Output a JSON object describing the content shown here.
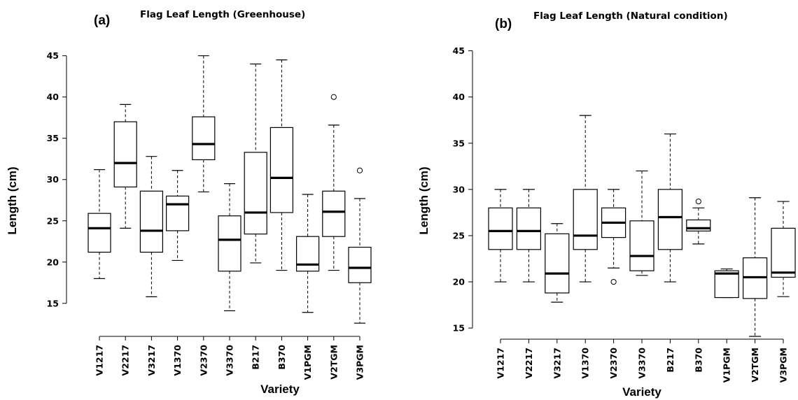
{
  "chart_data": [
    {
      "type": "box",
      "panel": "(a)",
      "title": "Flag Leaf Length (Greenhouse)",
      "xlabel": "Variety",
      "ylabel": "Length (cm)",
      "ylim": [
        11,
        46.5
      ],
      "yticks": [
        15,
        20,
        25,
        30,
        35,
        40,
        45
      ],
      "categories": [
        "V1217",
        "V2217",
        "V3217",
        "V1370",
        "V2370",
        "V3370",
        "B217",
        "B370",
        "V1PGM",
        "V2TGM",
        "V3PGM"
      ],
      "boxes": [
        {
          "min": 18.0,
          "q1": 21.2,
          "median": 24.1,
          "q3": 25.9,
          "max": 31.2,
          "outliers": []
        },
        {
          "min": 24.1,
          "q1": 29.1,
          "median": 32.0,
          "q3": 37.0,
          "max": 39.1,
          "outliers": []
        },
        {
          "min": 15.8,
          "q1": 21.2,
          "median": 23.8,
          "q3": 28.6,
          "max": 32.8,
          "outliers": []
        },
        {
          "min": 20.2,
          "q1": 23.8,
          "median": 27.0,
          "q3": 28.0,
          "max": 31.1,
          "outliers": []
        },
        {
          "min": 28.5,
          "q1": 32.4,
          "median": 34.3,
          "q3": 37.6,
          "max": 45.0,
          "outliers": []
        },
        {
          "min": 14.1,
          "q1": 18.9,
          "median": 22.7,
          "q3": 25.6,
          "max": 29.5,
          "outliers": []
        },
        {
          "min": 19.9,
          "q1": 23.4,
          "median": 26.0,
          "q3": 33.3,
          "max": 44.0,
          "outliers": []
        },
        {
          "min": 19.0,
          "q1": 26.0,
          "median": 30.2,
          "q3": 36.3,
          "max": 44.5,
          "outliers": []
        },
        {
          "min": 13.9,
          "q1": 18.9,
          "median": 19.7,
          "q3": 23.1,
          "max": 28.2,
          "outliers": []
        },
        {
          "min": 19.0,
          "q1": 23.1,
          "median": 26.1,
          "q3": 28.6,
          "max": 36.6,
          "outliers": [
            40.0
          ]
        },
        {
          "min": 12.6,
          "q1": 17.5,
          "median": 19.3,
          "q3": 21.8,
          "max": 27.7,
          "outliers": [
            31.1
          ]
        }
      ]
    },
    {
      "type": "box",
      "panel": "(b)",
      "title": "Flag Leaf Length (Natural condition)",
      "xlabel": "Variety",
      "ylabel": "Length (cm)",
      "ylim": [
        13.8,
        45.5
      ],
      "yticks": [
        15,
        20,
        25,
        30,
        35,
        40,
        45
      ],
      "categories": [
        "V1217",
        "V2217",
        "V3217",
        "V1370",
        "V2370",
        "V3370",
        "B217",
        "B370",
        "V1PGM",
        "V2TGM",
        "V3PGM"
      ],
      "boxes": [
        {
          "min": 20.0,
          "q1": 23.5,
          "median": 25.5,
          "q3": 28.0,
          "max": 30.0,
          "outliers": []
        },
        {
          "min": 20.0,
          "q1": 23.5,
          "median": 25.5,
          "q3": 28.0,
          "max": 30.0,
          "outliers": []
        },
        {
          "min": 17.8,
          "q1": 18.8,
          "median": 20.9,
          "q3": 25.2,
          "max": 26.3,
          "outliers": []
        },
        {
          "min": 20.0,
          "q1": 23.5,
          "median": 25.0,
          "q3": 30.0,
          "max": 38.0,
          "outliers": []
        },
        {
          "min": 21.5,
          "q1": 24.8,
          "median": 26.4,
          "q3": 28.0,
          "max": 30.0,
          "outliers": [
            20.0
          ]
        },
        {
          "min": 20.7,
          "q1": 21.2,
          "median": 22.8,
          "q3": 26.6,
          "max": 32.0,
          "outliers": []
        },
        {
          "min": 20.0,
          "q1": 23.5,
          "median": 27.0,
          "q3": 30.0,
          "max": 36.0,
          "outliers": []
        },
        {
          "min": 24.1,
          "q1": 25.5,
          "median": 25.8,
          "q3": 26.7,
          "max": 28.0,
          "outliers": [
            28.7
          ]
        },
        {
          "min": 18.3,
          "q1": 18.3,
          "median": 20.9,
          "q3": 21.2,
          "max": 21.4,
          "outliers": []
        },
        {
          "min": 14.1,
          "q1": 18.2,
          "median": 20.5,
          "q3": 22.6,
          "max": 29.1,
          "outliers": []
        },
        {
          "min": 18.4,
          "q1": 20.5,
          "median": 21.0,
          "q3": 25.8,
          "max": 28.7,
          "outliers": []
        }
      ]
    }
  ]
}
